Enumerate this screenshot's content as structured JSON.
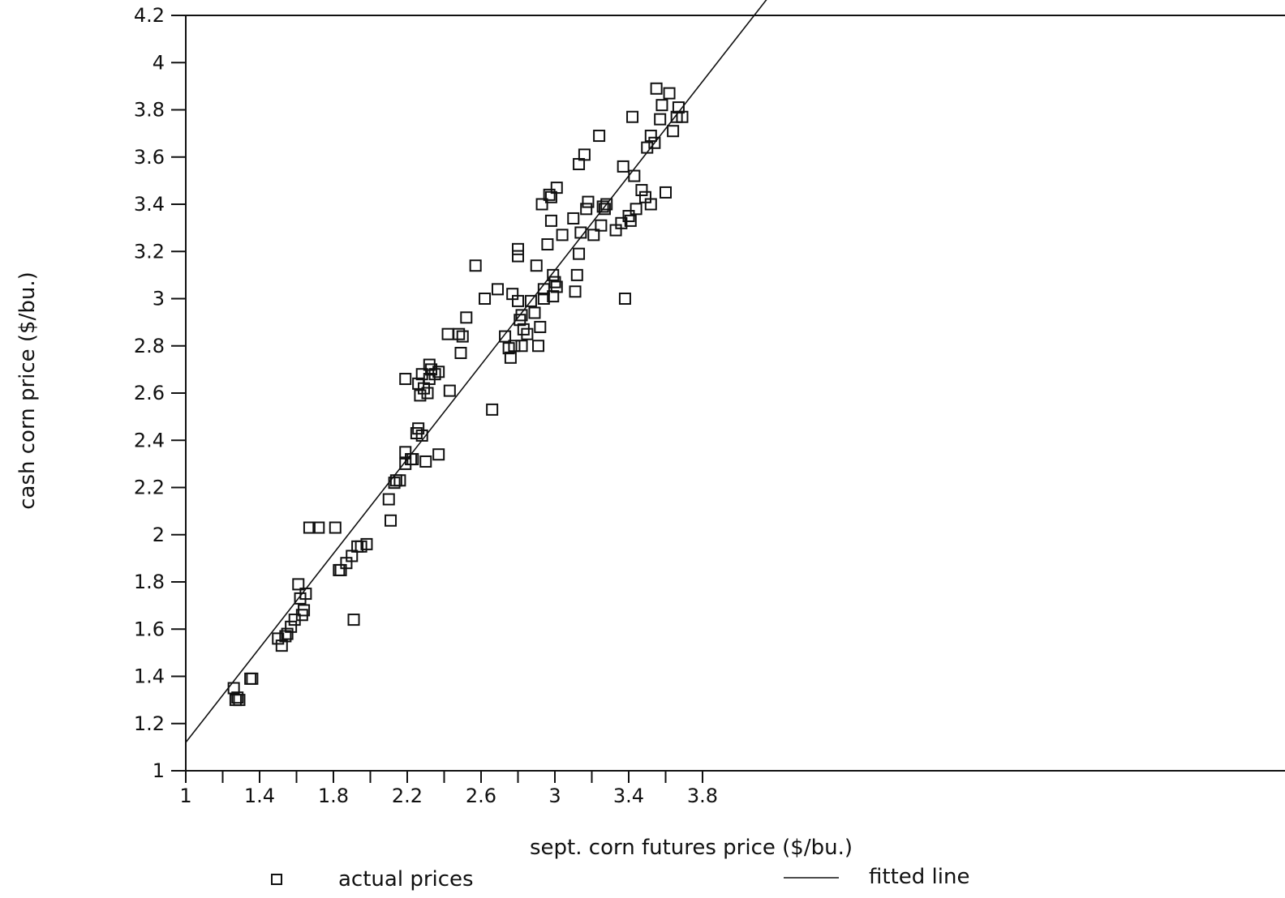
{
  "chart_data": {
    "type": "scatter",
    "xlabel": "sept. corn futures price ($/bu.)",
    "ylabel": "cash corn price ($/bu.)",
    "xlim": [
      1,
      4
    ],
    "ylim": [
      1,
      4.2
    ],
    "x_ticks": [
      1,
      1.4,
      1.8,
      2.2,
      2.6,
      3,
      3.4,
      3.8
    ],
    "x_tick_labels": [
      "1",
      "1.4",
      "1.8",
      "2.2",
      "2.6",
      "3",
      "3.4",
      "3.8"
    ],
    "y_ticks": [
      1,
      1.2,
      1.4,
      1.6,
      1.8,
      2,
      2.2,
      2.4,
      2.6,
      2.8,
      3,
      3.2,
      3.4,
      3.6,
      3.8,
      4,
      4.2
    ],
    "y_tick_labels": [
      "1",
      "1.2",
      "1.4",
      "1.6",
      "1.8",
      "2",
      "2.2",
      "2.4",
      "2.6",
      "2.8",
      "3",
      "3.2",
      "3.4",
      "3.6",
      "3.8",
      "4",
      "4.2"
    ],
    "grid": false,
    "legend_position": "bottom",
    "series": [
      {
        "name": "actual prices",
        "marker": "open-square",
        "points": [
          [
            1.26,
            1.35
          ],
          [
            1.27,
            1.3
          ],
          [
            1.28,
            1.31
          ],
          [
            1.29,
            1.3
          ],
          [
            1.35,
            1.39
          ],
          [
            1.36,
            1.39
          ],
          [
            1.5,
            1.56
          ],
          [
            1.52,
            1.53
          ],
          [
            1.54,
            1.57
          ],
          [
            1.55,
            1.58
          ],
          [
            1.57,
            1.61
          ],
          [
            1.59,
            1.64
          ],
          [
            1.61,
            1.79
          ],
          [
            1.62,
            1.73
          ],
          [
            1.63,
            1.66
          ],
          [
            1.64,
            1.68
          ],
          [
            1.65,
            1.75
          ],
          [
            1.67,
            2.03
          ],
          [
            1.72,
            2.03
          ],
          [
            1.81,
            2.03
          ],
          [
            1.83,
            1.85
          ],
          [
            1.84,
            1.85
          ],
          [
            1.87,
            1.88
          ],
          [
            1.9,
            1.91
          ],
          [
            1.91,
            1.64
          ],
          [
            1.93,
            1.95
          ],
          [
            1.95,
            1.95
          ],
          [
            1.98,
            1.96
          ],
          [
            2.1,
            2.15
          ],
          [
            2.11,
            2.06
          ],
          [
            2.13,
            2.22
          ],
          [
            2.14,
            2.23
          ],
          [
            2.16,
            2.23
          ],
          [
            2.19,
            2.35
          ],
          [
            2.19,
            2.3
          ],
          [
            2.19,
            2.66
          ],
          [
            2.22,
            2.32
          ],
          [
            2.23,
            2.32
          ],
          [
            2.25,
            2.43
          ],
          [
            2.26,
            2.45
          ],
          [
            2.26,
            2.64
          ],
          [
            2.27,
            2.59
          ],
          [
            2.28,
            2.68
          ],
          [
            2.28,
            2.42
          ],
          [
            2.29,
            2.62
          ],
          [
            2.3,
            2.31
          ],
          [
            2.31,
            2.6
          ],
          [
            2.32,
            2.72
          ],
          [
            2.32,
            2.66
          ],
          [
            2.33,
            2.7
          ],
          [
            2.35,
            2.68
          ],
          [
            2.37,
            2.69
          ],
          [
            2.37,
            2.34
          ],
          [
            2.42,
            2.85
          ],
          [
            2.43,
            2.61
          ],
          [
            2.48,
            2.85
          ],
          [
            2.49,
            2.77
          ],
          [
            2.5,
            2.84
          ],
          [
            2.52,
            2.92
          ],
          [
            2.57,
            3.14
          ],
          [
            2.62,
            3.0
          ],
          [
            2.66,
            2.53
          ],
          [
            2.69,
            3.04
          ],
          [
            2.73,
            2.84
          ],
          [
            2.75,
            2.79
          ],
          [
            2.76,
            2.75
          ],
          [
            2.77,
            3.02
          ],
          [
            2.78,
            2.8
          ],
          [
            2.8,
            3.21
          ],
          [
            2.8,
            3.18
          ],
          [
            2.8,
            2.99
          ],
          [
            2.81,
            2.91
          ],
          [
            2.82,
            2.8
          ],
          [
            2.82,
            2.93
          ],
          [
            2.83,
            2.87
          ],
          [
            2.85,
            2.85
          ],
          [
            2.87,
            2.99
          ],
          [
            2.89,
            2.94
          ],
          [
            2.9,
            3.14
          ],
          [
            2.91,
            2.8
          ],
          [
            2.92,
            2.88
          ],
          [
            2.93,
            3.4
          ],
          [
            2.94,
            3.04
          ],
          [
            2.94,
            3.0
          ],
          [
            2.96,
            3.23
          ],
          [
            2.97,
            3.44
          ],
          [
            2.98,
            3.43
          ],
          [
            2.98,
            3.33
          ],
          [
            2.99,
            3.1
          ],
          [
            2.99,
            3.01
          ],
          [
            3.0,
            3.07
          ],
          [
            3.01,
            3.05
          ],
          [
            3.01,
            3.47
          ],
          [
            3.04,
            3.27
          ],
          [
            3.1,
            3.34
          ],
          [
            3.11,
            3.03
          ],
          [
            3.12,
            3.1
          ],
          [
            3.13,
            3.57
          ],
          [
            3.13,
            3.19
          ],
          [
            3.14,
            3.28
          ],
          [
            3.16,
            3.61
          ],
          [
            3.17,
            3.38
          ],
          [
            3.18,
            3.41
          ],
          [
            3.21,
            3.27
          ],
          [
            3.24,
            3.69
          ],
          [
            3.25,
            3.31
          ],
          [
            3.26,
            3.39
          ],
          [
            3.27,
            3.38
          ],
          [
            3.28,
            3.4
          ],
          [
            3.33,
            3.29
          ],
          [
            3.36,
            3.32
          ],
          [
            3.37,
            3.56
          ],
          [
            3.38,
            3.0
          ],
          [
            3.4,
            3.35
          ],
          [
            3.41,
            3.33
          ],
          [
            3.42,
            3.77
          ],
          [
            3.43,
            3.52
          ],
          [
            3.44,
            3.38
          ],
          [
            3.47,
            3.46
          ],
          [
            3.49,
            3.43
          ],
          [
            3.5,
            3.64
          ],
          [
            3.52,
            3.69
          ],
          [
            3.52,
            3.4
          ],
          [
            3.54,
            3.66
          ],
          [
            3.55,
            3.89
          ],
          [
            3.57,
            3.76
          ],
          [
            3.58,
            3.82
          ],
          [
            3.6,
            3.45
          ],
          [
            3.62,
            3.87
          ],
          [
            3.64,
            3.71
          ],
          [
            3.66,
            3.77
          ],
          [
            3.67,
            3.81
          ],
          [
            3.69,
            3.77
          ]
        ]
      },
      {
        "name": "fitted line",
        "type": "line",
        "points": [
          [
            1,
            1.12
          ],
          [
            4,
            4.12
          ]
        ]
      }
    ]
  }
}
